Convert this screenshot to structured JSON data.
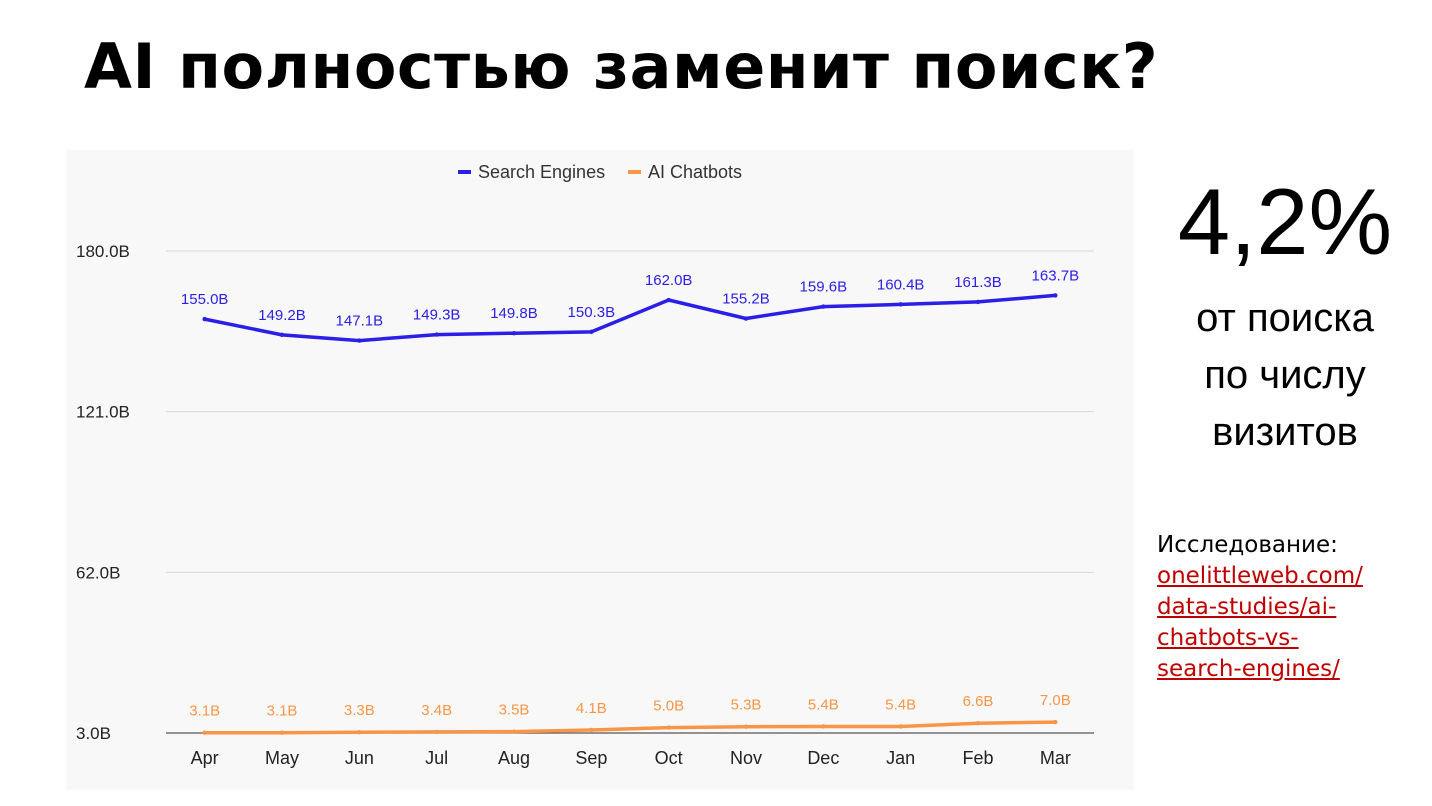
{
  "slide": {
    "title": "AI полностью заменит поиск?",
    "stat_value": "4,2%",
    "stat_caption_lines": [
      "от поиска",
      "по числу",
      "визитов"
    ],
    "source_label": "Исследование:",
    "source_link_lines": [
      "onelittleweb.com/",
      "data-studies/ai-",
      "chatbots-vs-",
      "search-engines/"
    ],
    "colors": {
      "link": "#c00000",
      "panel_bg": "#f8f8f8"
    }
  },
  "chart_data": {
    "type": "line",
    "title": "",
    "xlabel": "",
    "ylabel": "",
    "categories": [
      "Apr",
      "May",
      "Jun",
      "Jul",
      "Aug",
      "Sep",
      "Oct",
      "Nov",
      "Dec",
      "Jan",
      "Feb",
      "Mar"
    ],
    "y_ticks": [
      3.0,
      62.0,
      121.0,
      180.0
    ],
    "y_tick_labels": [
      "3.0B",
      "62.0B",
      "121.0B",
      "180.0B"
    ],
    "ylim": [
      3.0,
      180.0
    ],
    "grid": true,
    "legend_position": "top-center",
    "series": [
      {
        "name": "Search Engines",
        "color": "#2b1ee6",
        "values": [
          155.0,
          149.2,
          147.1,
          149.3,
          149.8,
          150.3,
          162.0,
          155.2,
          159.6,
          160.4,
          161.3,
          163.7
        ],
        "labels": [
          "155.0B",
          "149.2B",
          "147.1B",
          "149.3B",
          "149.8B",
          "150.3B",
          "162.0B",
          "155.2B",
          "159.6B",
          "160.4B",
          "161.3B",
          "163.7B"
        ]
      },
      {
        "name": "AI Chatbots",
        "color": "#f79646",
        "values": [
          3.1,
          3.1,
          3.3,
          3.4,
          3.5,
          4.1,
          5.0,
          5.3,
          5.4,
          5.4,
          6.6,
          7.0
        ],
        "labels": [
          "3.1B",
          "3.1B",
          "3.3B",
          "3.4B",
          "3.5B",
          "4.1B",
          "5.0B",
          "5.3B",
          "5.4B",
          "5.4B",
          "6.6B",
          "7.0B"
        ]
      }
    ]
  }
}
